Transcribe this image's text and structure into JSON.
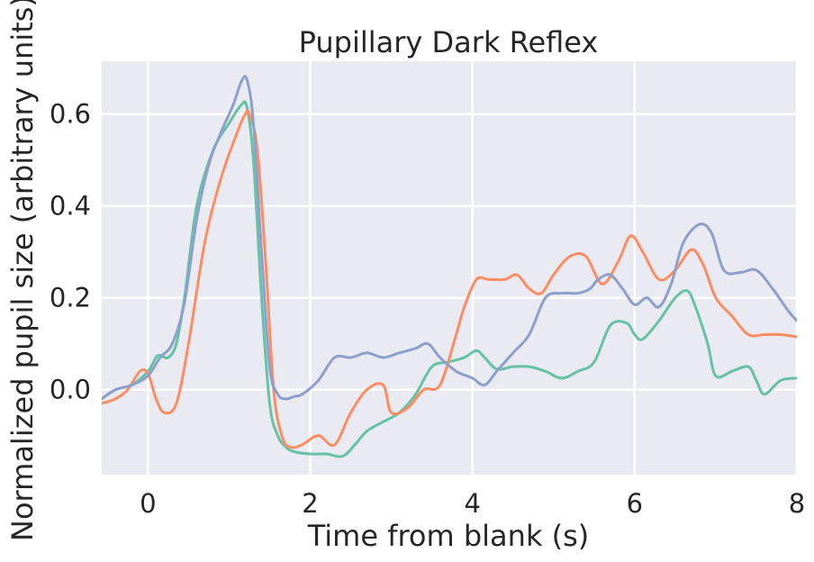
{
  "chart_data": {
    "type": "line",
    "title": "Pupillary Dark Reflex",
    "xlabel": "Time from blank (s)",
    "ylabel": "Normalized pupil size (arbitrary units)",
    "xlim": [
      -0.57,
      8.0
    ],
    "ylim": [
      -0.185,
      0.715
    ],
    "xticks": [
      0,
      2,
      4,
      6,
      8
    ],
    "yticks": [
      0.0,
      0.2,
      0.4,
      0.6
    ],
    "xtick_labels": [
      "0",
      "2",
      "4",
      "6",
      "8"
    ],
    "ytick_labels": [
      "0.0",
      "0.2",
      "0.4",
      "0.6"
    ],
    "grid": true,
    "background": "#eaeaf2",
    "series": [
      {
        "color": "#66c2a5",
        "x": [
          -0.57,
          -0.4,
          -0.2,
          0.0,
          0.1,
          0.15,
          0.25,
          0.35,
          0.45,
          0.6,
          0.8,
          1.0,
          1.15,
          1.22,
          1.3,
          1.4,
          1.5,
          1.6,
          1.7,
          1.8,
          2.0,
          2.2,
          2.4,
          2.55,
          2.7,
          2.9,
          3.1,
          3.3,
          3.5,
          3.7,
          3.9,
          4.05,
          4.15,
          4.3,
          4.5,
          4.7,
          4.9,
          5.1,
          5.3,
          5.5,
          5.7,
          5.9,
          6.0,
          6.1,
          6.3,
          6.5,
          6.65,
          6.75,
          6.9,
          7.0,
          7.2,
          7.4,
          7.5,
          7.6,
          7.8,
          8.0
        ],
        "y": [
          -0.02,
          0.0,
          0.01,
          0.04,
          0.07,
          0.075,
          0.07,
          0.1,
          0.2,
          0.4,
          0.52,
          0.58,
          0.62,
          0.615,
          0.5,
          0.2,
          -0.03,
          -0.1,
          -0.125,
          -0.135,
          -0.14,
          -0.14,
          -0.145,
          -0.12,
          -0.09,
          -0.07,
          -0.05,
          -0.01,
          0.05,
          0.06,
          0.07,
          0.085,
          0.07,
          0.045,
          0.05,
          0.05,
          0.04,
          0.025,
          0.04,
          0.06,
          0.14,
          0.145,
          0.12,
          0.11,
          0.15,
          0.2,
          0.215,
          0.18,
          0.1,
          0.03,
          0.04,
          0.05,
          0.02,
          -0.01,
          0.02,
          0.025
        ]
      },
      {
        "color": "#fc8d62",
        "x": [
          -0.57,
          -0.4,
          -0.25,
          -0.1,
          0.0,
          0.1,
          0.2,
          0.35,
          0.5,
          0.7,
          0.9,
          1.1,
          1.2,
          1.25,
          1.35,
          1.45,
          1.55,
          1.65,
          1.75,
          1.9,
          2.1,
          2.3,
          2.5,
          2.7,
          2.9,
          3.0,
          3.2,
          3.4,
          3.6,
          3.8,
          3.9,
          4.05,
          4.2,
          4.4,
          4.55,
          4.7,
          4.85,
          5.0,
          5.2,
          5.4,
          5.6,
          5.8,
          5.95,
          6.1,
          6.3,
          6.5,
          6.7,
          6.85,
          7.0,
          7.2,
          7.4,
          7.6,
          7.8,
          8.0
        ],
        "y": [
          -0.03,
          -0.02,
          0.0,
          0.04,
          0.035,
          -0.02,
          -0.05,
          -0.03,
          0.1,
          0.32,
          0.46,
          0.56,
          0.6,
          0.6,
          0.52,
          0.28,
          0.0,
          -0.1,
          -0.125,
          -0.12,
          -0.1,
          -0.12,
          -0.05,
          0.0,
          0.01,
          -0.05,
          -0.04,
          0.0,
          0.01,
          0.12,
          0.18,
          0.24,
          0.24,
          0.24,
          0.25,
          0.22,
          0.21,
          0.25,
          0.29,
          0.29,
          0.23,
          0.28,
          0.335,
          0.3,
          0.24,
          0.26,
          0.305,
          0.27,
          0.2,
          0.16,
          0.12,
          0.12,
          0.12,
          0.115
        ]
      },
      {
        "color": "#8da0cb",
        "x": [
          -0.57,
          -0.4,
          -0.2,
          0.0,
          0.15,
          0.3,
          0.45,
          0.6,
          0.75,
          0.9,
          1.05,
          1.15,
          1.22,
          1.3,
          1.4,
          1.5,
          1.6,
          1.7,
          1.8,
          1.9,
          2.1,
          2.3,
          2.5,
          2.7,
          2.9,
          3.1,
          3.3,
          3.45,
          3.6,
          3.8,
          4.0,
          4.15,
          4.3,
          4.5,
          4.7,
          4.9,
          5.1,
          5.3,
          5.45,
          5.55,
          5.7,
          5.85,
          6.0,
          6.15,
          6.3,
          6.45,
          6.6,
          6.8,
          6.95,
          7.1,
          7.3,
          7.5,
          7.7,
          7.9,
          8.0
        ],
        "y": [
          -0.02,
          0.0,
          0.01,
          0.03,
          0.07,
          0.1,
          0.19,
          0.37,
          0.49,
          0.56,
          0.62,
          0.67,
          0.675,
          0.58,
          0.3,
          0.05,
          -0.01,
          -0.02,
          -0.015,
          -0.01,
          0.02,
          0.07,
          0.07,
          0.08,
          0.07,
          0.08,
          0.09,
          0.1,
          0.07,
          0.04,
          0.025,
          0.01,
          0.04,
          0.08,
          0.12,
          0.2,
          0.21,
          0.21,
          0.22,
          0.24,
          0.25,
          0.22,
          0.185,
          0.2,
          0.18,
          0.23,
          0.32,
          0.36,
          0.34,
          0.26,
          0.255,
          0.26,
          0.22,
          0.17,
          0.15
        ]
      }
    ]
  }
}
